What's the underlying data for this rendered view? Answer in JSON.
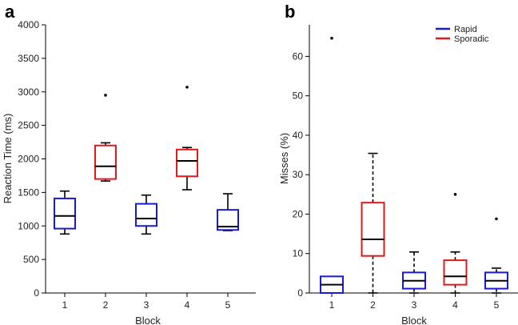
{
  "colors": {
    "rapid": "#1a1ad6",
    "sporadic": "#e01a1a",
    "median": "#000000",
    "axis": "#000000"
  },
  "chart_data": [
    {
      "panel": "a",
      "type": "box",
      "xlabel": "Block",
      "ylabel": "Reaction Time (ms)",
      "ylim": [
        0,
        4000
      ],
      "yticks": [
        0,
        500,
        1000,
        1500,
        2000,
        2500,
        3000,
        3500,
        4000
      ],
      "categories": [
        "1",
        "2",
        "3",
        "4",
        "5"
      ],
      "boxes": [
        {
          "block": "1",
          "condition": "rapid",
          "whisker_low": 880,
          "q1": 960,
          "median": 1150,
          "q3": 1410,
          "whisker_high": 1520,
          "outliers": []
        },
        {
          "block": "2",
          "condition": "sporadic",
          "whisker_low": 1670,
          "q1": 1700,
          "median": 1890,
          "q3": 2200,
          "whisker_high": 2240,
          "outliers": [
            2950
          ]
        },
        {
          "block": "3",
          "condition": "rapid",
          "whisker_low": 880,
          "q1": 1000,
          "median": 1110,
          "q3": 1330,
          "whisker_high": 1460,
          "outliers": []
        },
        {
          "block": "4",
          "condition": "sporadic",
          "whisker_low": 1540,
          "q1": 1740,
          "median": 1970,
          "q3": 2140,
          "whisker_high": 2170,
          "outliers": [
            3070
          ]
        },
        {
          "block": "5",
          "condition": "rapid",
          "whisker_low": 930,
          "q1": 940,
          "median": 990,
          "q3": 1240,
          "whisker_high": 1480,
          "outliers": []
        }
      ],
      "dashed_whiskers": false
    },
    {
      "panel": "b",
      "type": "box",
      "xlabel": "Block",
      "ylabel": "Misses (%)",
      "ylim": [
        0,
        68
      ],
      "yticks": [
        0,
        10,
        20,
        30,
        40,
        50,
        60
      ],
      "categories": [
        "1",
        "2",
        "3",
        "4",
        "5"
      ],
      "legend": [
        {
          "label": "Rapid",
          "condition": "rapid"
        },
        {
          "label": "Sporadic",
          "condition": "sporadic"
        }
      ],
      "boxes": [
        {
          "block": "1",
          "condition": "rapid",
          "whisker_low": 0,
          "q1": 0,
          "median": 2.1,
          "q3": 4.2,
          "whisker_high": 4.2,
          "outliers": [
            64.6
          ]
        },
        {
          "block": "2",
          "condition": "sporadic",
          "whisker_low": 0,
          "q1": 9.4,
          "median": 13.6,
          "q3": 22.9,
          "whisker_high": 35.4,
          "outliers": []
        },
        {
          "block": "3",
          "condition": "rapid",
          "whisker_low": 0,
          "q1": 1.1,
          "median": 3.1,
          "q3": 5.2,
          "whisker_high": 10.4,
          "outliers": []
        },
        {
          "block": "4",
          "condition": "sporadic",
          "whisker_low": 0,
          "q1": 2.1,
          "median": 4.2,
          "q3": 8.3,
          "whisker_high": 10.4,
          "outliers": [
            25.0
          ]
        },
        {
          "block": "5",
          "condition": "rapid",
          "whisker_low": 0,
          "q1": 1.1,
          "median": 3.1,
          "q3": 5.2,
          "whisker_high": 6.3,
          "outliers": [
            18.8
          ]
        }
      ],
      "dashed_whiskers": true
    }
  ]
}
